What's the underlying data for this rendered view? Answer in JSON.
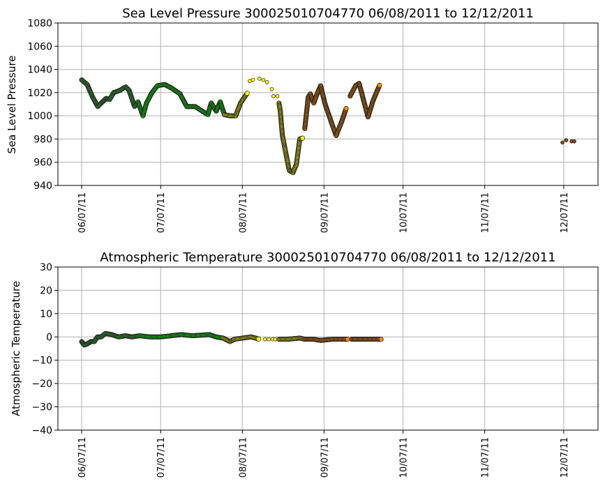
{
  "chart_data": [
    {
      "type": "scatter",
      "title": "Sea Level Pressure 300025010704770  06/08/2011 to 12/12/2011",
      "ylabel": "Sea Level Pressure",
      "xlabel": "",
      "ylim": [
        940,
        1080
      ],
      "yticks": [
        940,
        960,
        980,
        1000,
        1020,
        1040,
        1060,
        1080
      ],
      "xlim_days_from_0607": [
        -9,
        196
      ],
      "xticks": [
        {
          "label": "06/07/11",
          "day": 0
        },
        {
          "label": "07/07/11",
          "day": 30
        },
        {
          "label": "08/07/11",
          "day": 61
        },
        {
          "label": "09/07/11",
          "day": 92
        },
        {
          "label": "10/07/11",
          "day": 122
        },
        {
          "label": "11/07/11",
          "day": 153
        },
        {
          "label": "12/07/11",
          "day": 183
        }
      ],
      "grid": true,
      "segments": [
        {
          "color": "#33bb33",
          "mode": "line",
          "points": [
            [
              0,
              1031
            ],
            [
              2.1,
              1027
            ],
            [
              4.2,
              1016
            ],
            [
              6.1,
              1008
            ],
            [
              7.9,
              1012
            ],
            [
              9.3,
              1015
            ],
            [
              10.6,
              1014
            ],
            [
              12.2,
              1020
            ],
            [
              14.6,
              1022
            ],
            [
              16.7,
              1025
            ],
            [
              18,
              1022
            ],
            [
              20.1,
              1008
            ],
            [
              21.4,
              1012
            ]
          ]
        },
        {
          "color": "#00ff00",
          "mode": "line",
          "points": [
            [
              21.4,
              1012
            ],
            [
              23.3,
              1000
            ],
            [
              24.6,
              1011
            ],
            [
              26.7,
              1020
            ],
            [
              28.8,
              1026
            ],
            [
              31.5,
              1027
            ],
            [
              34.1,
              1024
            ],
            [
              37.3,
              1019
            ],
            [
              39.9,
              1008
            ],
            [
              43.1,
              1008
            ],
            [
              45.8,
              1004
            ],
            [
              47.9,
              1001
            ],
            [
              49.2,
              1011
            ],
            [
              51.1,
              1004
            ],
            [
              52.6,
              1012
            ],
            [
              54.2,
              1001
            ]
          ]
        },
        {
          "color": "#ffff00",
          "mode": "line",
          "points": [
            [
              54.2,
              1001
            ],
            [
              56.3,
              1000
            ],
            [
              58.5,
              1000
            ],
            [
              60.3,
              1011
            ],
            [
              63,
              1020
            ]
          ]
        },
        {
          "color": "#ffff00",
          "mode": "dots",
          "points": [
            [
              63.8,
              1030
            ],
            [
              65,
              1031
            ],
            [
              67.5,
              1032
            ],
            [
              69,
              1031
            ],
            [
              70.4,
              1029
            ],
            [
              72.2,
              1023
            ],
            [
              72.8,
              1017
            ],
            [
              74.3,
              1017
            ]
          ]
        },
        {
          "color": "#ffff00",
          "mode": "line",
          "points": [
            [
              74.9,
              1011
            ],
            [
              75.4,
              1004
            ],
            [
              76.2,
              983
            ],
            [
              77.5,
              968
            ],
            [
              78.8,
              953
            ],
            [
              80.2,
              951
            ],
            [
              81.5,
              958
            ],
            [
              82.8,
              980
            ],
            [
              84.1,
              981
            ]
          ]
        },
        {
          "color": "#ff8800",
          "mode": "line",
          "points": [
            [
              84.7,
              989
            ],
            [
              86,
              1016
            ],
            [
              86.8,
              1019
            ],
            [
              88.1,
              1011
            ],
            [
              89.4,
              1019
            ],
            [
              90.7,
              1026
            ],
            [
              92.3,
              1011
            ],
            [
              94.7,
              995
            ],
            [
              96.6,
              983
            ],
            [
              98.7,
              995
            ],
            [
              100.5,
              1007
            ]
          ]
        },
        {
          "color": "#ff8800",
          "mode": "line",
          "points": [
            [
              101.9,
              1017
            ],
            [
              104,
              1026
            ],
            [
              105.3,
              1028
            ],
            [
              106.6,
              1017
            ],
            [
              108.7,
              999
            ],
            [
              110.6,
              1013
            ],
            [
              113.2,
              1027
            ]
          ]
        },
        {
          "color": "#8b4513",
          "mode": "dots",
          "points": [
            [
              182.5,
              977
            ],
            [
              183.9,
              979
            ],
            [
              186,
              978
            ],
            [
              187,
              978
            ]
          ]
        }
      ]
    },
    {
      "type": "scatter",
      "title": "Atmospheric Temperature 300025010704770  06/08/2011 to 12/12/2011",
      "ylabel": "Atmospheric Temperature",
      "xlabel": "",
      "ylim": [
        -40,
        30
      ],
      "yticks": [
        -40,
        -30,
        -20,
        -10,
        0,
        10,
        20,
        30
      ],
      "xlim_days_from_0607": [
        -9,
        196
      ],
      "xticks": [
        {
          "label": "06/07/11",
          "day": 0
        },
        {
          "label": "07/07/11",
          "day": 30
        },
        {
          "label": "08/07/11",
          "day": 61
        },
        {
          "label": "09/07/11",
          "day": 92
        },
        {
          "label": "10/07/11",
          "day": 122
        },
        {
          "label": "11/07/11",
          "day": 153
        },
        {
          "label": "12/07/11",
          "day": 183
        }
      ],
      "grid": true,
      "segments": [
        {
          "color": "#33bb33",
          "mode": "line",
          "points": [
            [
              0,
              -2
            ],
            [
              1,
              -3.5
            ],
            [
              2.1,
              -3
            ],
            [
              3.5,
              -2
            ],
            [
              4.8,
              -2
            ],
            [
              6,
              0
            ],
            [
              7.4,
              0
            ],
            [
              9,
              1.5
            ],
            [
              11.4,
              1
            ],
            [
              14,
              0
            ],
            [
              16.7,
              0.5
            ],
            [
              19,
              0
            ],
            [
              22,
              0.5
            ]
          ]
        },
        {
          "color": "#00ff00",
          "mode": "line",
          "points": [
            [
              22,
              0.5
            ],
            [
              26,
              0
            ],
            [
              29.9,
              0
            ],
            [
              34,
              0.5
            ],
            [
              37.8,
              1
            ],
            [
              42,
              0.5
            ],
            [
              48.4,
              1
            ],
            [
              51,
              0
            ],
            [
              53.7,
              -0.5
            ]
          ]
        },
        {
          "color": "#ffff00",
          "mode": "line",
          "points": [
            [
              53.7,
              -0.5
            ],
            [
              56.3,
              -2
            ],
            [
              58,
              -1
            ],
            [
              61.1,
              -0.5
            ],
            [
              64.3,
              0
            ],
            [
              66,
              -0.5
            ],
            [
              67.5,
              -1
            ]
          ]
        },
        {
          "color": "#ffff00",
          "mode": "dots",
          "points": [
            [
              69.6,
              -1
            ],
            [
              71,
              -1
            ],
            [
              72.5,
              -1
            ],
            [
              73.5,
              -1
            ]
          ]
        },
        {
          "color": "#ffff00",
          "mode": "line",
          "points": [
            [
              74.9,
              -1
            ],
            [
              78,
              -1
            ],
            [
              82.8,
              -0.5
            ],
            [
              84.7,
              -1
            ]
          ]
        },
        {
          "color": "#ff8800",
          "mode": "line",
          "points": [
            [
              84.7,
              -1
            ],
            [
              88,
              -1
            ],
            [
              90.7,
              -1.5
            ],
            [
              95,
              -1
            ],
            [
              101.3,
              -1
            ]
          ]
        },
        {
          "color": "#ff8800",
          "mode": "line",
          "points": [
            [
              102.5,
              -1
            ],
            [
              108,
              -1
            ],
            [
              114,
              -1
            ]
          ]
        }
      ]
    }
  ]
}
